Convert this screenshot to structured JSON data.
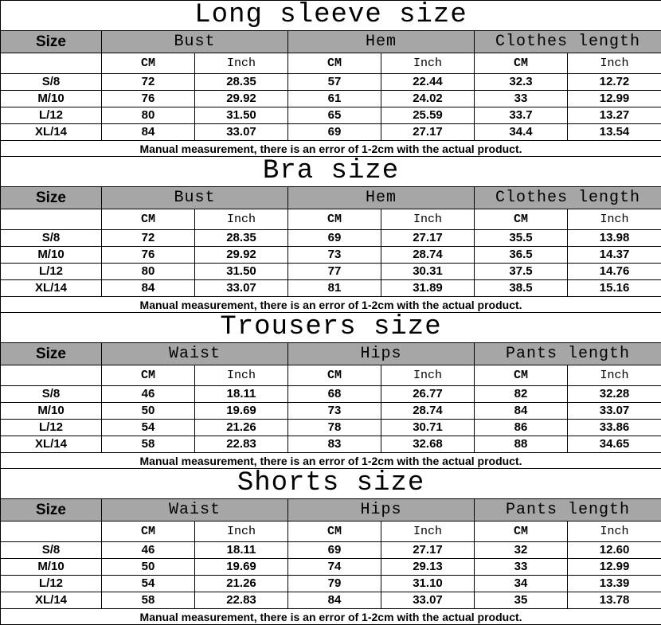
{
  "unit_labels": {
    "cm": "CM",
    "inch": "Inch"
  },
  "size_header": "Size",
  "note": "Manual measurement, there is an error of 1-2cm with the actual product.",
  "header_bg": "#a6a6a6",
  "sections": [
    {
      "title": "Long sleeve size",
      "columns": [
        "Bust",
        "Hem",
        "Clothes length"
      ],
      "rows": [
        [
          "S/8",
          "72",
          "28.35",
          "57",
          "22.44",
          "32.3",
          "12.72"
        ],
        [
          "M/10",
          "76",
          "29.92",
          "61",
          "24.02",
          "33",
          "12.99"
        ],
        [
          "L/12",
          "80",
          "31.50",
          "65",
          "25.59",
          "33.7",
          "13.27"
        ],
        [
          "XL/14",
          "84",
          "33.07",
          "69",
          "27.17",
          "34.4",
          "13.54"
        ]
      ]
    },
    {
      "title": "Bra size",
      "columns": [
        "Bust",
        "Hem",
        "Clothes length"
      ],
      "rows": [
        [
          "S/8",
          "72",
          "28.35",
          "69",
          "27.17",
          "35.5",
          "13.98"
        ],
        [
          "M/10",
          "76",
          "29.92",
          "73",
          "28.74",
          "36.5",
          "14.37"
        ],
        [
          "L/12",
          "80",
          "31.50",
          "77",
          "30.31",
          "37.5",
          "14.76"
        ],
        [
          "XL/14",
          "84",
          "33.07",
          "81",
          "31.89",
          "38.5",
          "15.16"
        ]
      ]
    },
    {
      "title": "Trousers size",
      "columns": [
        "Waist",
        "Hips",
        "Pants length"
      ],
      "rows": [
        [
          "S/8",
          "46",
          "18.11",
          "68",
          "26.77",
          "82",
          "32.28"
        ],
        [
          "M/10",
          "50",
          "19.69",
          "73",
          "28.74",
          "84",
          "33.07"
        ],
        [
          "L/12",
          "54",
          "21.26",
          "78",
          "30.71",
          "86",
          "33.86"
        ],
        [
          "XL/14",
          "58",
          "22.83",
          "83",
          "32.68",
          "88",
          "34.65"
        ]
      ]
    },
    {
      "title": "Shorts size",
      "columns": [
        "Waist",
        "Hips",
        "Pants length"
      ],
      "rows": [
        [
          "S/8",
          "46",
          "18.11",
          "69",
          "27.17",
          "32",
          "12.60"
        ],
        [
          "M/10",
          "50",
          "19.69",
          "74",
          "29.13",
          "33",
          "12.99"
        ],
        [
          "L/12",
          "54",
          "21.26",
          "79",
          "31.10",
          "34",
          "13.39"
        ],
        [
          "XL/14",
          "58",
          "22.83",
          "84",
          "33.07",
          "35",
          "13.78"
        ]
      ]
    }
  ]
}
